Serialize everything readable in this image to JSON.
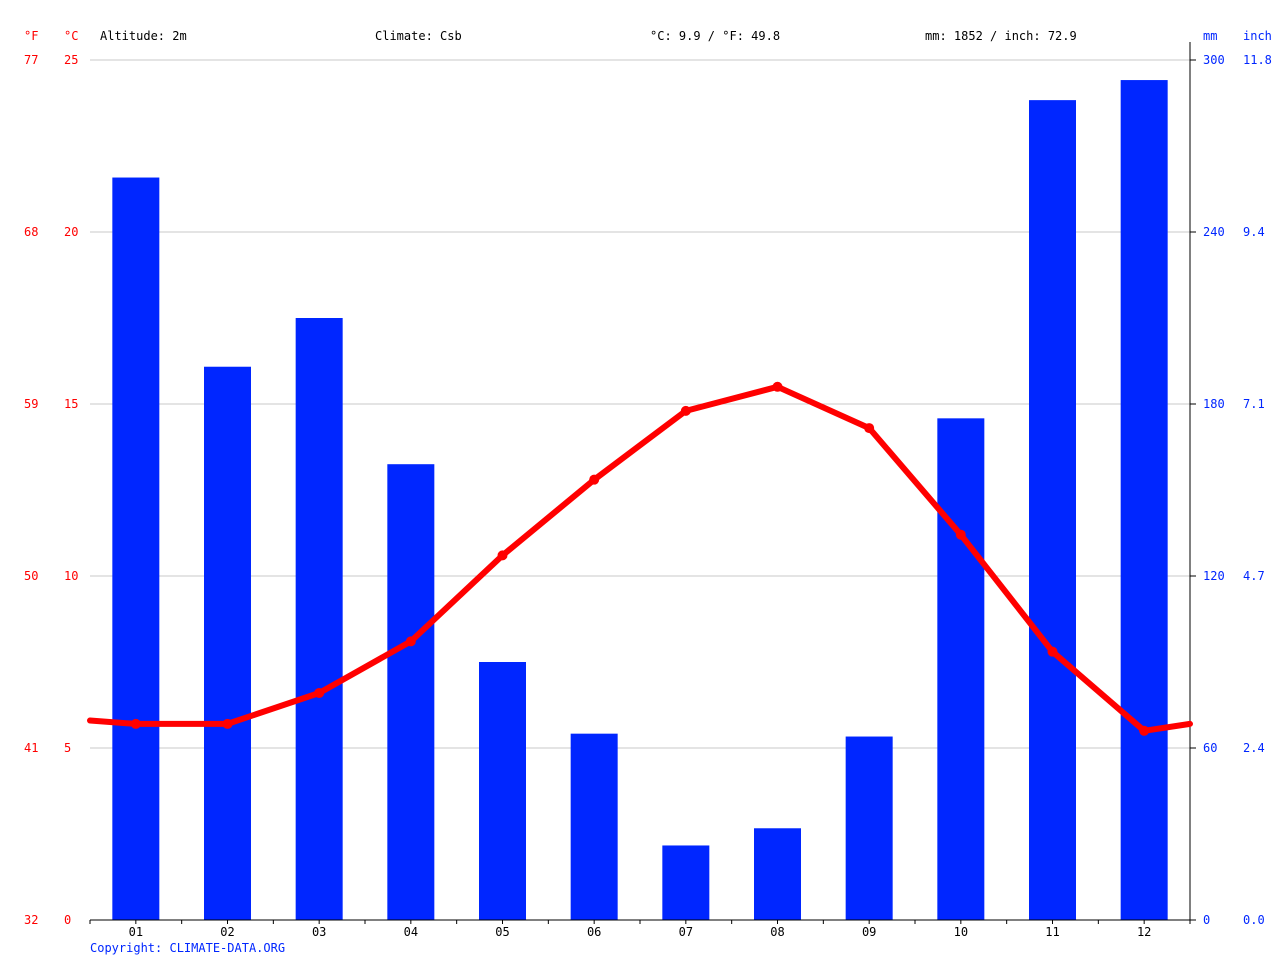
{
  "chart_data": {
    "type": "bar+line",
    "header": {
      "altitude": "Altitude: 2m",
      "climate": "Climate: Csb",
      "avg_temp": "°C: 9.9 / °F: 49.8",
      "precipitation": "mm: 1852 / inch: 72.9"
    },
    "axis_units": {
      "left_f": "°F",
      "left_c": "°C",
      "right_mm": "mm",
      "right_inch": "inch"
    },
    "left_c_ticks": [
      "0",
      "5",
      "10",
      "15",
      "20",
      "25"
    ],
    "left_f_ticks": [
      "32",
      "41",
      "50",
      "59",
      "68",
      "77"
    ],
    "right_mm_ticks": [
      "0",
      "60",
      "120",
      "180",
      "240",
      "300"
    ],
    "right_inch_ticks": [
      "0.0",
      "2.4",
      "4.7",
      "7.1",
      "9.4",
      "11.8"
    ],
    "temp_range_c": [
      0,
      25
    ],
    "precip_range_mm": [
      0,
      300
    ],
    "categories": [
      "01",
      "02",
      "03",
      "04",
      "05",
      "06",
      "07",
      "08",
      "09",
      "10",
      "11",
      "12"
    ],
    "precipitation_mm": [
      259,
      193,
      210,
      159,
      90,
      65,
      26,
      32,
      64,
      175,
      286,
      293
    ],
    "temperature_c": [
      5.7,
      5.7,
      6.6,
      8.1,
      10.6,
      12.8,
      14.8,
      15.5,
      14.3,
      11.2,
      7.8,
      5.5
    ],
    "temperature_edge_c": [
      5.8,
      5.7
    ],
    "colors": {
      "temperature": "#ff0000",
      "precipitation": "#0026ff",
      "grid": "#c8c8c8"
    },
    "copyright": "Copyright: CLIMATE-DATA.ORG"
  }
}
